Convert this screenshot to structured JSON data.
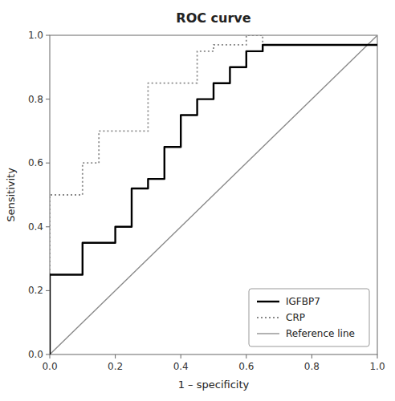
{
  "chart_data": {
    "type": "line",
    "title": "ROC curve",
    "x_label": "1 – specificity",
    "y_label": "Sensitivity",
    "xlim": [
      0.0,
      1.0
    ],
    "ylim": [
      0.0,
      1.0
    ],
    "xticks": [
      {
        "value": 0.0,
        "label": "0.0"
      },
      {
        "value": 0.2,
        "label": "0.2"
      },
      {
        "value": 0.4,
        "label": "0.4"
      },
      {
        "value": 0.6,
        "label": "0.6"
      },
      {
        "value": 0.8,
        "label": "0.8"
      },
      {
        "value": 1.0,
        "label": "1.0"
      }
    ],
    "yticks": [
      {
        "value": 0.0,
        "label": "0.0"
      },
      {
        "value": 0.2,
        "label": "0.2"
      },
      {
        "value": 0.4,
        "label": "0.4"
      },
      {
        "value": 0.6,
        "label": "0.6"
      },
      {
        "value": 0.8,
        "label": "0.8"
      },
      {
        "value": 1.0,
        "label": "1.0"
      }
    ],
    "grid": false,
    "legend": "lower right",
    "series": [
      {
        "name": "IGFBP7",
        "color": "#000000",
        "line_style": "solid",
        "x": [
          0.0,
          0.0,
          0.1,
          0.1,
          0.2,
          0.2,
          0.25,
          0.25,
          0.3,
          0.3,
          0.35,
          0.35,
          0.4,
          0.4,
          0.45,
          0.45,
          0.5,
          0.5,
          0.55,
          0.55,
          0.6,
          0.6,
          0.65,
          0.65,
          1.0
        ],
        "values": [
          0.0,
          0.25,
          0.25,
          0.35,
          0.35,
          0.4,
          0.4,
          0.52,
          0.52,
          0.55,
          0.55,
          0.65,
          0.65,
          0.75,
          0.75,
          0.8,
          0.8,
          0.85,
          0.85,
          0.9,
          0.9,
          0.95,
          0.95,
          0.97,
          0.97
        ]
      },
      {
        "name": "CRP",
        "color": "#888888",
        "line_style": "dotted",
        "x": [
          0.0,
          0.0,
          0.1,
          0.1,
          0.15,
          0.15,
          0.3,
          0.3,
          0.45,
          0.45,
          0.5,
          0.5,
          0.6,
          0.6,
          0.65,
          0.65,
          1.0
        ],
        "values": [
          0.0,
          0.5,
          0.5,
          0.6,
          0.6,
          0.7,
          0.7,
          0.85,
          0.85,
          0.95,
          0.95,
          0.97,
          0.97,
          1.0,
          1.0,
          0.97,
          0.97
        ]
      },
      {
        "name": "Reference line",
        "color": "#888888",
        "line_style": "solid",
        "x": [
          0.0,
          1.0
        ],
        "values": [
          0.0,
          1.0
        ]
      }
    ]
  }
}
